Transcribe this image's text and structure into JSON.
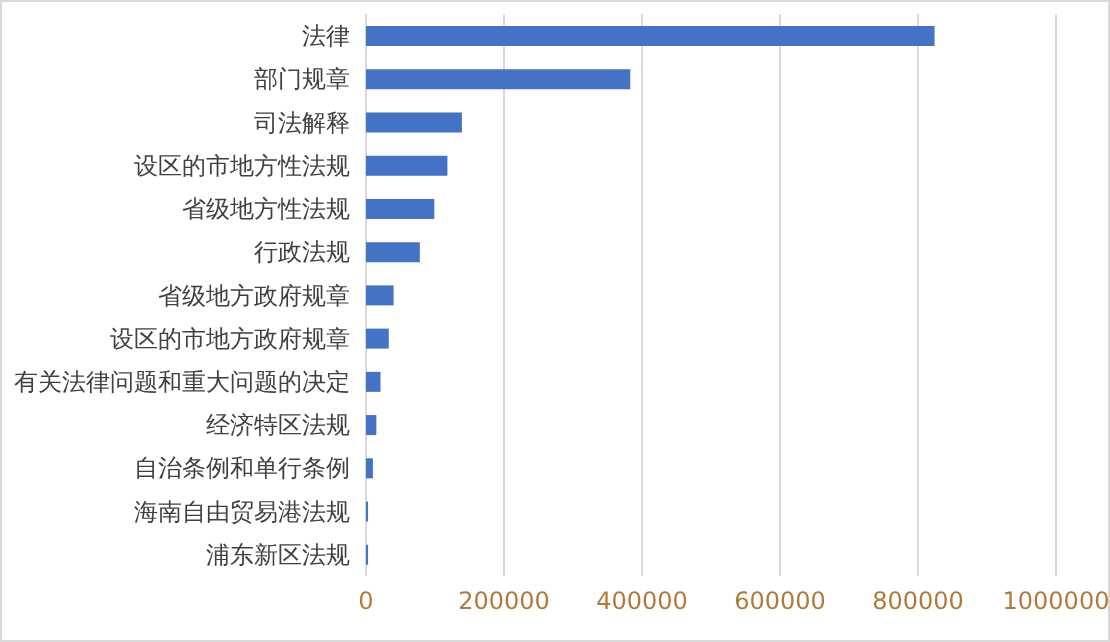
{
  "chart_data": {
    "type": "bar",
    "orientation": "horizontal",
    "categories": [
      "法律",
      "部门规章",
      "司法解释",
      "设区的市地方性法规",
      "省级地方性法规",
      "行政法规",
      "省级地方政府规章",
      "设区的市地方政府规章",
      "有关法律问题和重大问题的决定",
      "经济特区法规",
      "自治条例和单行条例",
      "海南自由贸易港法规",
      "浦东新区法规"
    ],
    "values": [
      824000,
      383000,
      139000,
      118000,
      99000,
      78000,
      40000,
      33000,
      21000,
      15000,
      10000,
      3000,
      3000
    ],
    "color": "#4472c4",
    "xlim": [
      0,
      1000000
    ],
    "xticks": [
      0,
      200000,
      400000,
      600000,
      800000,
      1000000
    ],
    "grid": "x"
  }
}
